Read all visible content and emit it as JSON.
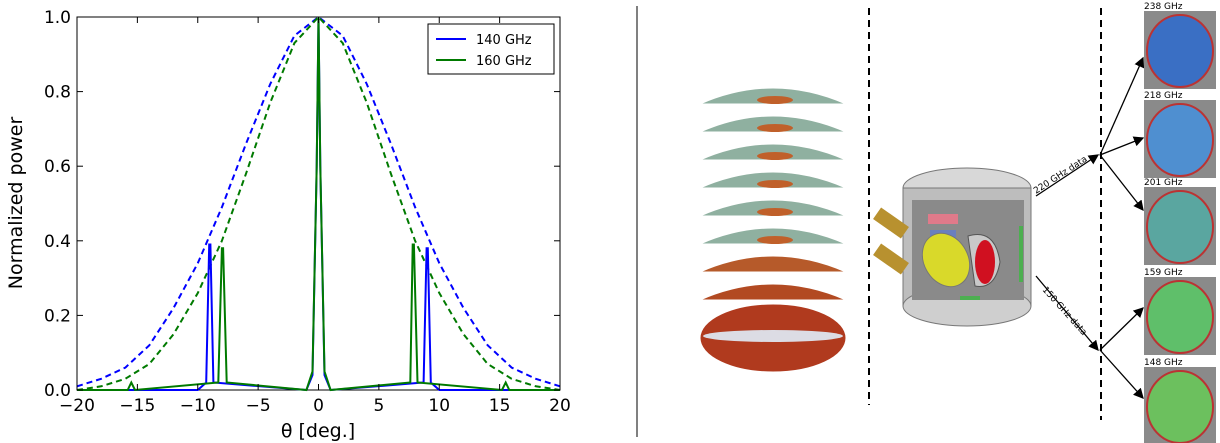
{
  "chart_data": {
    "type": "line",
    "xlabel": "θ [deg.]",
    "ylabel": "Normalized power",
    "xlim": [
      -20,
      20
    ],
    "ylim": [
      0,
      1.0
    ],
    "xticks": [
      "−20",
      "−15",
      "−10",
      "−5",
      "0",
      "5",
      "10",
      "15",
      "20"
    ],
    "xtick_values": [
      -20,
      -15,
      -10,
      -5,
      0,
      5,
      10,
      15,
      20
    ],
    "yticks": [
      "0.0",
      "0.2",
      "0.4",
      "0.6",
      "0.8",
      "1.0"
    ],
    "ytick_values": [
      0,
      0.2,
      0.4,
      0.6,
      0.8,
      1.0
    ],
    "grid": false,
    "legend_position": "top-right",
    "series": [
      {
        "name": "140 GHz",
        "color": "#0000ff",
        "style": "solid",
        "x": [
          -20,
          -10,
          -9.3,
          -9.05,
          -8.95,
          -8.7,
          -1,
          -0.5,
          -0.15,
          0,
          0.15,
          0.5,
          1,
          8.7,
          8.95,
          9.05,
          9.3,
          10,
          20
        ],
        "y": [
          0,
          0,
          0.02,
          0.39,
          0.39,
          0.02,
          0,
          0.04,
          0.6,
          1.0,
          0.6,
          0.04,
          0,
          0.02,
          0.38,
          0.38,
          0.02,
          0,
          0
        ]
      },
      {
        "name": "160 GHz",
        "color": "#007a00",
        "style": "solid",
        "x": [
          -20,
          -15.8,
          -15.5,
          -15.2,
          -8.3,
          -8.0,
          -7.9,
          -7.6,
          -1,
          -0.5,
          -0.15,
          0,
          0.15,
          0.5,
          1,
          7.6,
          7.8,
          7.9,
          8.2,
          15.2,
          15.5,
          15.8,
          20
        ],
        "y": [
          0,
          0,
          0.02,
          0,
          0.02,
          0.38,
          0.38,
          0.02,
          0,
          0.05,
          0.6,
          1.0,
          0.6,
          0.05,
          0,
          0.02,
          0.39,
          0.39,
          0.02,
          0,
          0.02,
          0,
          0
        ]
      },
      {
        "name": "",
        "color": "#0000ff",
        "style": "dashed",
        "x": [
          -20,
          -18,
          -16,
          -14,
          -12,
          -10,
          -8,
          -6,
          -4,
          -2,
          0,
          2,
          4,
          6,
          8,
          10,
          12,
          14,
          16,
          18,
          20
        ],
        "y": [
          0.01,
          0.03,
          0.06,
          0.12,
          0.22,
          0.34,
          0.49,
          0.66,
          0.82,
          0.95,
          1.0,
          0.95,
          0.82,
          0.66,
          0.49,
          0.34,
          0.22,
          0.12,
          0.06,
          0.03,
          0.01
        ]
      },
      {
        "name": "",
        "color": "#007a00",
        "style": "dashed",
        "x": [
          -20,
          -18,
          -16,
          -14,
          -12,
          -10,
          -8,
          -6,
          -4,
          -2,
          0,
          2,
          4,
          6,
          8,
          10,
          12,
          14,
          16,
          18,
          20
        ],
        "y": [
          0.0,
          0.01,
          0.03,
          0.07,
          0.15,
          0.26,
          0.4,
          0.58,
          0.77,
          0.93,
          1.0,
          0.93,
          0.77,
          0.58,
          0.4,
          0.26,
          0.15,
          0.07,
          0.03,
          0.01,
          0.0
        ]
      }
    ]
  },
  "diagram": {
    "outputs": [
      {
        "label": "238 GHz",
        "map_color": "#3a6fc4"
      },
      {
        "label": "218 GHz",
        "map_color": "#4f8fd0"
      },
      {
        "label": "201 GHz",
        "map_color": "#5aa6a0"
      },
      {
        "label": "159 GHz",
        "map_color": "#5fbf6a"
      },
      {
        "label": "148 GHz",
        "map_color": "#6cc05e"
      }
    ],
    "arrow_labels": {
      "upper": "220 GHz data",
      "lower": "150 GHz data"
    },
    "sky_map_colors": [
      "#d9a94a",
      "#c98c3a",
      "#b84a2a",
      "#a8331c",
      "#d8d8e0"
    ]
  }
}
